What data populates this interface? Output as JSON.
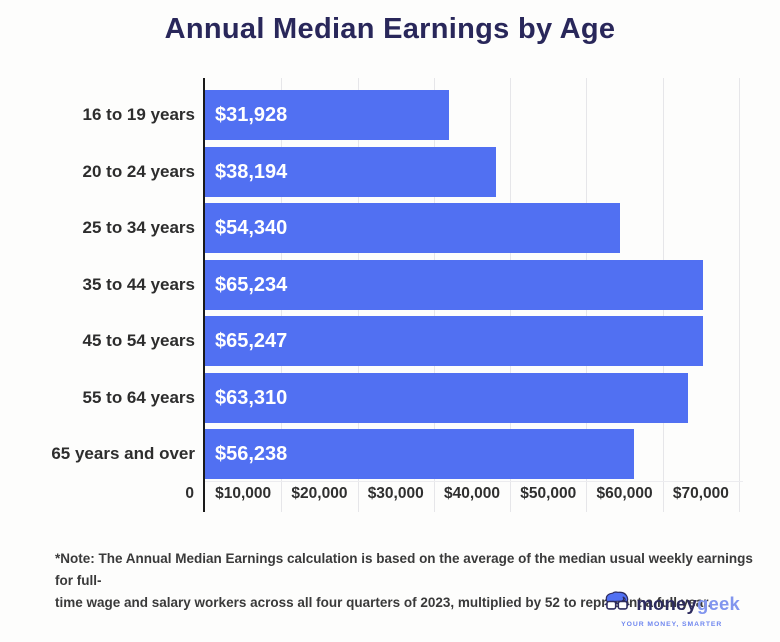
{
  "chart_data": {
    "type": "bar",
    "orientation": "horizontal",
    "title": "Annual Median Earnings by Age",
    "categories": [
      "16 to 19 years",
      "20 to 24 years",
      "25 to 34 years",
      "35 to 44 years",
      "45 to 54 years",
      "55 to 64 years",
      "65 years and over"
    ],
    "values": [
      31928,
      38194,
      54340,
      65234,
      65247,
      63310,
      56238
    ],
    "value_labels": [
      "$31,928",
      "$38,194",
      "$54,340",
      "$65,234",
      "$65,247",
      "$63,310",
      "$56,238"
    ],
    "x_tick_labels": [
      "0",
      "$10,000",
      "$20,000",
      "$30,000",
      "$40,000",
      "$50,000",
      "$60,000",
      "$70,000"
    ],
    "xlim": [
      0,
      70000
    ],
    "grid": true,
    "legend": "none",
    "bar_color": "#5170f2",
    "value_label_color": "#ffffff"
  },
  "note": {
    "lines": [
      "*Note: The Annual Median Earnings calculation is based on the average of the median usual weekly earnings for full-",
      "time wage and salary workers across all four quarters of 2023, multiplied by 52 to represent a full year."
    ]
  },
  "logo": {
    "brand_first": "money",
    "brand_second": "geek",
    "tagline": "YOUR MONEY, SMARTER",
    "icon": "moneygeek-face-icon"
  },
  "colors": {
    "title": "#29275a",
    "bar": "#5170f2",
    "category_label": "#2d2d2d",
    "tick_label": "#2f2f2f",
    "gridline": "#e6e6e9",
    "axis": "#1a1a1a",
    "note_text": "#3a3a3a",
    "brand_navy": "#2d2b5e",
    "brand_blue": "#8195ee",
    "tagline_blue": "#6e86ef"
  }
}
